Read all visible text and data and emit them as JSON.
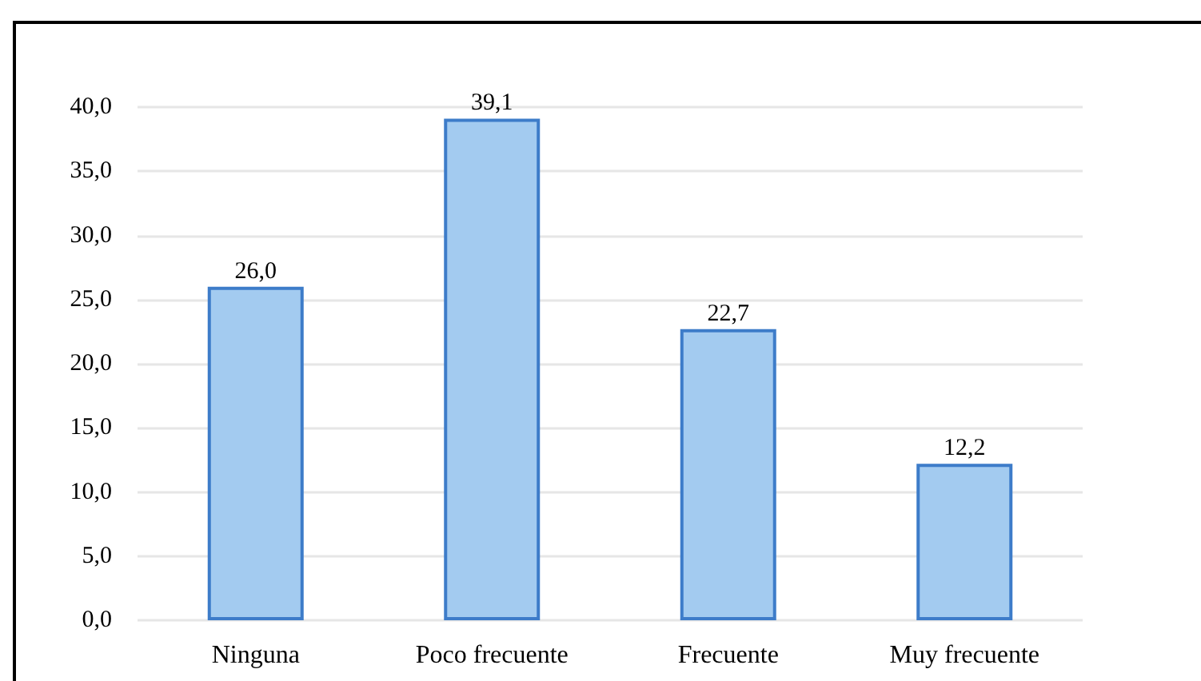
{
  "chart_data": {
    "type": "bar",
    "categories": [
      "Ninguna",
      "Poco frecuente",
      "Frecuente",
      "Muy frecuente"
    ],
    "values": [
      26.0,
      39.1,
      22.7,
      12.2
    ],
    "value_labels": [
      "26,0",
      "39,1",
      "22,7",
      "12,2"
    ],
    "color": "#a3cbf0",
    "ylim": [
      0,
      40
    ],
    "yticks": [
      {
        "value": 0,
        "label": "0,0"
      },
      {
        "value": 5,
        "label": "5,0"
      },
      {
        "value": 10,
        "label": "10,0"
      },
      {
        "value": 15,
        "label": "15,0"
      },
      {
        "value": 20,
        "label": "20,0"
      },
      {
        "value": 25,
        "label": "25,0"
      },
      {
        "value": 30,
        "label": "30,0"
      },
      {
        "value": 35,
        "label": "35,0"
      },
      {
        "value": 40,
        "label": "40,0"
      }
    ],
    "grid": "y"
  }
}
